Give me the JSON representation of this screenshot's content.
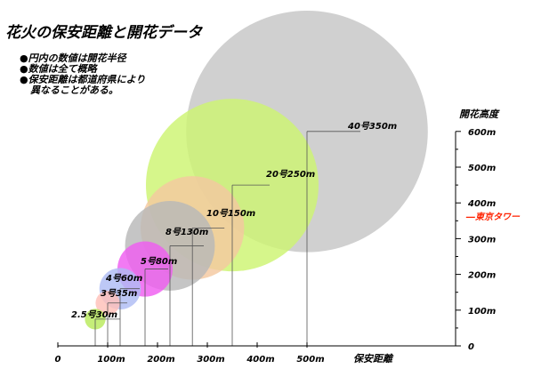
{
  "chart_data": {
    "type": "bubble",
    "title": "花火の保安距離と開花データ",
    "notes": [
      "●円内の数値は開花半径",
      "●数値は全て概略",
      "●保安距離は都道府県により",
      "異なることがある。"
    ],
    "xlabel": "保安距離",
    "ylabel": "開花高度",
    "x_unit_labels": [
      "0",
      "100m",
      "200m",
      "300m",
      "400m",
      "500m"
    ],
    "y_unit_labels": [
      "0",
      "100m",
      "200m",
      "300m",
      "400m",
      "500m",
      "600m"
    ],
    "xlim": [
      0,
      600
    ],
    "ylim": [
      0,
      600
    ],
    "reference": {
      "label": "東京タワー",
      "height": 333,
      "color": "#ff2200"
    },
    "shells": [
      {
        "label": "2.5号30m",
        "distance": 75,
        "height": 75,
        "radius": 30,
        "color": "#b8ea5a"
      },
      {
        "label": "3号35m",
        "distance": 100,
        "height": 120,
        "radius": 35,
        "color": "#ffc0b8"
      },
      {
        "label": "4号60m",
        "distance": 125,
        "height": 160,
        "radius": 60,
        "color": "#aebcf4"
      },
      {
        "label": "5号80m",
        "distance": 175,
        "height": 215,
        "radius": 80,
        "color": "#ef5df0"
      },
      {
        "label": "8号130m",
        "distance": 225,
        "height": 280,
        "radius": 130,
        "color": "#b8b8b8"
      },
      {
        "label": "10号150m",
        "distance": 270,
        "height": 330,
        "radius": 150,
        "color": "#f4c8a0"
      },
      {
        "label": "20号250m",
        "distance": 350,
        "height": 450,
        "radius": 250,
        "color": "#cdf471"
      },
      {
        "label": "40号350m",
        "distance": 500,
        "height": 600,
        "radius": 350,
        "color": "#c6c6c6"
      }
    ]
  }
}
